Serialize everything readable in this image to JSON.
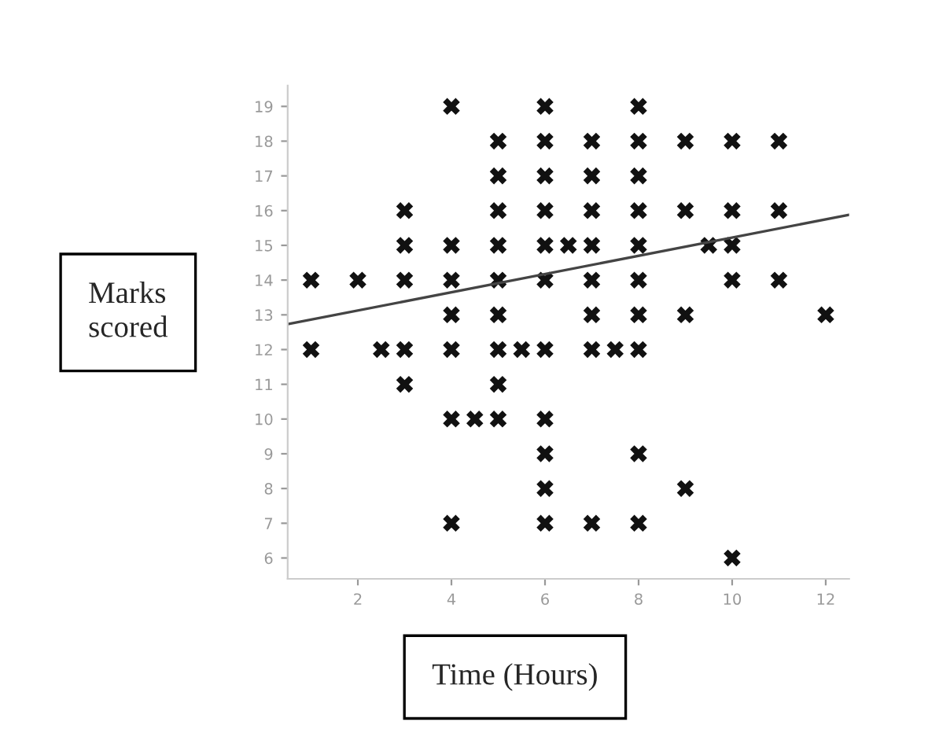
{
  "chart_data": {
    "type": "scatter",
    "xlabel": "Time (Hours)",
    "ylabel": "Marks\nscored",
    "xlim": [
      0.5,
      12.5
    ],
    "ylim": [
      5.4,
      19.6
    ],
    "xticks": [
      2,
      4,
      6,
      8,
      10,
      12
    ],
    "yticks": [
      6,
      7,
      8,
      9,
      10,
      11,
      12,
      13,
      14,
      15,
      16,
      17,
      18,
      19
    ],
    "grid": false,
    "legend": false,
    "marker": "cross",
    "series": [
      {
        "color": "#111111",
        "x": [
          1,
          1,
          2,
          2.5,
          3,
          3,
          3,
          3,
          3,
          4,
          4,
          4,
          4,
          4,
          4,
          4,
          4.5,
          5,
          5,
          5,
          5,
          5,
          5,
          5,
          5,
          5,
          5.5,
          6,
          6,
          6,
          6,
          6,
          6,
          6,
          6,
          6,
          6,
          6,
          6.5,
          7,
          7,
          7,
          7,
          7,
          7,
          7,
          7,
          7.5,
          8,
          8,
          8,
          8,
          8,
          8,
          8,
          8,
          8,
          8,
          9,
          9,
          9,
          9,
          9.5,
          10,
          10,
          10,
          10,
          10,
          11,
          11,
          11,
          12
        ],
        "values": [
          14,
          12,
          14,
          12,
          16,
          15,
          14,
          12,
          11,
          19,
          15,
          14,
          13,
          12,
          10,
          7,
          10,
          18,
          17,
          16,
          15,
          14,
          13,
          12,
          11,
          10,
          12,
          19,
          18,
          17,
          16,
          15,
          14,
          12,
          10,
          9,
          8,
          7,
          15,
          18,
          17,
          16,
          15,
          14,
          13,
          12,
          7,
          12,
          19,
          18,
          17,
          16,
          15,
          14,
          13,
          12,
          9,
          7,
          18,
          16,
          13,
          8,
          15,
          18,
          16,
          15,
          14,
          6,
          18,
          16,
          14,
          13
        ]
      },
      {
        "type": "line",
        "marker": "none",
        "color": "#444444",
        "x": [
          0.5,
          12.5
        ],
        "values": [
          12.73,
          15.88
        ]
      }
    ]
  }
}
